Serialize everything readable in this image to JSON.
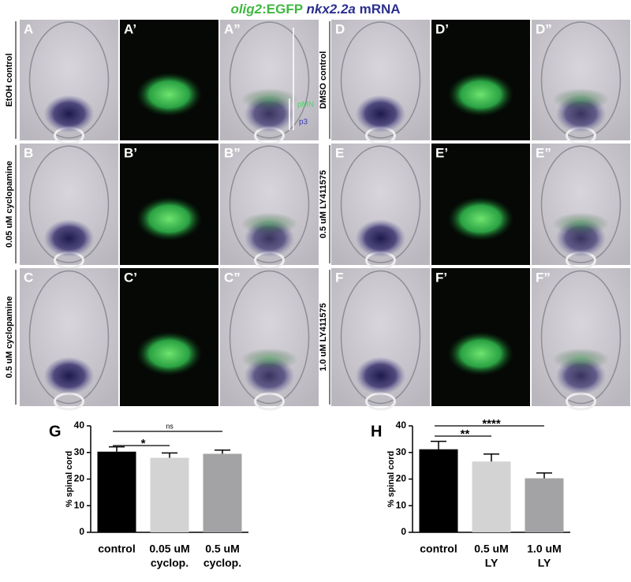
{
  "title": {
    "parts": [
      {
        "text": "olig2",
        "italic": true,
        "color": "#3fb83f"
      },
      {
        "text": ":EGFP ",
        "italic": false,
        "color": "#3fb83f"
      },
      {
        "text": "nkx2.2a",
        "italic": true,
        "color": "#2b2f8f"
      },
      {
        "text": " mRNA",
        "italic": false,
        "color": "#2b2f8f"
      }
    ]
  },
  "rows": [
    {
      "label": "EtOH control",
      "panels": [
        "A",
        "A’",
        "A”"
      ]
    },
    {
      "label": "0.05 uM cyclopamine",
      "panels": [
        "B",
        "B’",
        "B”"
      ]
    },
    {
      "label": "0.5 uM cyclopamine",
      "panels": [
        "C",
        "C’",
        "C”"
      ]
    },
    {
      "label": "DMSO control",
      "panels": [
        "D",
        "D’",
        "D”"
      ]
    },
    {
      "label": "0.5 uM LY411575",
      "panels": [
        "E",
        "E’",
        "E”"
      ]
    },
    {
      "label": "1.0 uM LY411575",
      "panels": [
        "F",
        "F’",
        "F”"
      ]
    }
  ],
  "annotations": [
    "pMN",
    "p3"
  ],
  "chart_data": [
    {
      "type": "bar",
      "panel": "G",
      "ylabel": "% spinal cord",
      "categories": [
        [
          "control"
        ],
        [
          "0.05 uM",
          "cyclop."
        ],
        [
          "0.5 uM",
          "cyclop."
        ]
      ],
      "values": [
        30.3,
        28,
        29.5
      ],
      "errors": [
        1.8,
        1.8,
        1.4
      ],
      "colors": [
        "#000000",
        "#d3d3d3",
        "#a3a3a6"
      ],
      "ylim": [
        0,
        40
      ],
      "yticks": [
        0,
        10,
        20,
        30,
        40
      ],
      "comparisons": [
        {
          "from": 0,
          "to": 1,
          "label": "*"
        },
        {
          "from": 0,
          "to": 2,
          "label": "ns"
        }
      ]
    },
    {
      "type": "bar",
      "panel": "H",
      "ylabel": "% spinal cord",
      "categories": [
        [
          "control"
        ],
        [
          "0.5 uM",
          "LY"
        ],
        [
          "1.0 uM",
          "LY"
        ]
      ],
      "values": [
        31.2,
        26.6,
        20.3
      ],
      "errors": [
        3,
        2.8,
        2
      ],
      "colors": [
        "#000000",
        "#d3d3d3",
        "#a3a3a6"
      ],
      "ylim": [
        0,
        40
      ],
      "yticks": [
        0,
        10,
        20,
        30,
        40
      ],
      "comparisons": [
        {
          "from": 0,
          "to": 1,
          "label": "**"
        },
        {
          "from": 0,
          "to": 2,
          "label": "****"
        }
      ]
    }
  ]
}
